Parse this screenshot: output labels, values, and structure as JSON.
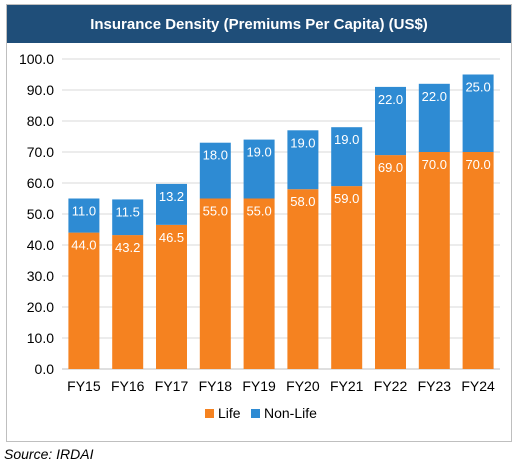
{
  "chart_data": {
    "type": "bar",
    "stacked": true,
    "title": "Insurance Density (Premiums Per Capita) (US$)",
    "categories": [
      "FY15",
      "FY16",
      "FY17",
      "FY18",
      "FY19",
      "FY20",
      "FY21",
      "FY22",
      "FY23",
      "FY24"
    ],
    "series": [
      {
        "name": "Life",
        "color": "#f58220",
        "values": [
          44.0,
          43.2,
          46.5,
          55.0,
          55.0,
          58.0,
          59.0,
          69.0,
          70.0,
          70.0
        ],
        "labels": [
          "44.0",
          "43.2",
          "46.5",
          "55.0",
          "55.0",
          "58.0",
          "59.0",
          "69.0",
          "70.0",
          "70.0"
        ]
      },
      {
        "name": "Non-Life",
        "color": "#2e8bd3",
        "values": [
          11.0,
          11.5,
          13.2,
          18.0,
          19.0,
          19.0,
          19.0,
          22.0,
          22.0,
          25.0
        ],
        "labels": [
          "11.0",
          "11.5",
          "13.2",
          "18.0",
          "19.0",
          "19.0",
          "19.0",
          "22.0",
          "22.0",
          "25.0"
        ]
      }
    ],
    "ylim": [
      0,
      100
    ],
    "yticks": [
      "0.0",
      "10.0",
      "20.0",
      "30.0",
      "40.0",
      "50.0",
      "60.0",
      "70.0",
      "80.0",
      "90.0",
      "100.0"
    ],
    "grid": true,
    "legend": "bottom-center"
  },
  "source": "Source: IRDAI"
}
